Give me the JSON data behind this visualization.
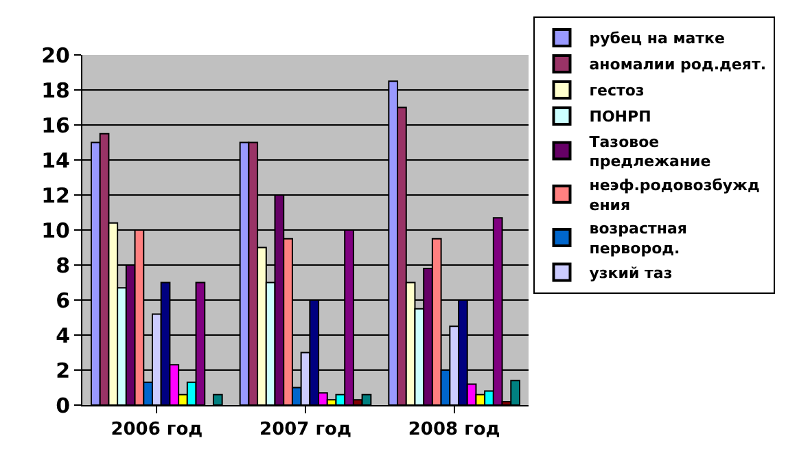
{
  "chart_data": {
    "type": "bar",
    "categories": [
      "2006 год",
      "2007 год",
      "2008 год"
    ],
    "series": [
      {
        "name": "рубец на матке",
        "color": "#9999ff",
        "values": [
          15,
          15,
          18.5
        ]
      },
      {
        "name": "аномалии род.деят.",
        "color": "#993366",
        "values": [
          15.5,
          15,
          17
        ]
      },
      {
        "name": "гестоз",
        "color": "#ffffcc",
        "values": [
          10.4,
          9,
          7
        ]
      },
      {
        "name": "ПОНРП",
        "color": "#ccffff",
        "values": [
          6.7,
          7,
          5.5
        ]
      },
      {
        "name": "Тазовое предлежание",
        "color": "#660066",
        "values": [
          8,
          12,
          7.8
        ]
      },
      {
        "name": "неэф.родовозбуждения",
        "color": "#ff8080",
        "values": [
          10,
          9.5,
          9.5
        ]
      },
      {
        "name": "возрастная первород.",
        "color": "#0066cc",
        "values": [
          1.3,
          1,
          2
        ]
      },
      {
        "name": "узкий таз",
        "color": "#ccccff",
        "values": [
          5.2,
          3,
          4.5
        ]
      },
      {
        "color": "#000080",
        "values": [
          7,
          6,
          6
        ]
      },
      {
        "color": "#ff00ff",
        "values": [
          2.3,
          0.7,
          1.2
        ]
      },
      {
        "color": "#ffff00",
        "values": [
          0.6,
          0.3,
          0.6
        ]
      },
      {
        "color": "#00ffff",
        "values": [
          1.3,
          0.6,
          0.8
        ]
      },
      {
        "color": "#800080",
        "values": [
          7,
          10,
          10.7
        ]
      },
      {
        "color": "#800000",
        "values": [
          null,
          0.3,
          0.2
        ]
      },
      {
        "color": "#008080",
        "values": [
          0.6,
          0.6,
          1.4
        ]
      }
    ],
    "ylim": [
      0,
      20
    ],
    "yticks": [
      0,
      2,
      4,
      6,
      8,
      10,
      12,
      14,
      16,
      18,
      20
    ],
    "grid": "y",
    "legend": "right"
  }
}
